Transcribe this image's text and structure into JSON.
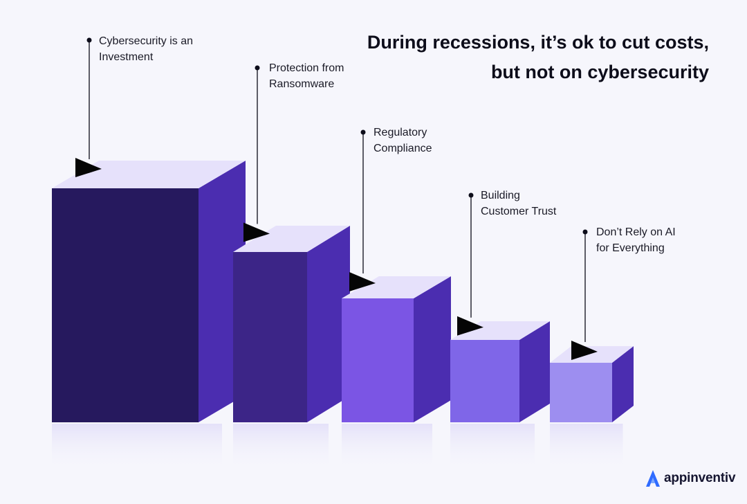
{
  "title": "During recessions, it’s ok to cut costs, but not on cybersecurity",
  "steps": [
    {
      "label": "Cybersecurity is an\nInvestment",
      "color": "#26195e"
    },
    {
      "label": "Protection from\nRansomware",
      "color": "#3c2587"
    },
    {
      "label": "Regulatory\nCompliance",
      "color": "#7b55e4"
    },
    {
      "label": "Building\nCustomer Trust",
      "color": "#7f66e8"
    },
    {
      "label": "Don’t Rely on AI\nfor Everything",
      "color": "#9d8ef0"
    }
  ],
  "side_color": "#4b2db0",
  "top_color": "#e6e1fb",
  "logo": {
    "text": "appinventiv",
    "icon": "appinventiv-logo-icon",
    "color": "#2f6bff"
  }
}
